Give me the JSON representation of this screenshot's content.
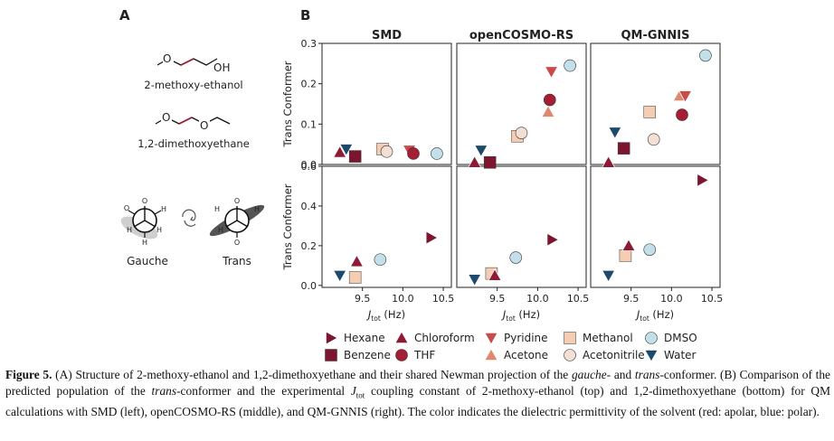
{
  "panel_labels": {
    "a": "A",
    "b": "B"
  },
  "molecules": {
    "mol1_atom": "OH",
    "mol1_name": "2-methoxy-ethanol",
    "mol2_atom": "O",
    "mol2_name": "1,2-dimethoxyethane",
    "newman_o": "O",
    "newman_h": "H",
    "gauche_label": "Gauche",
    "trans_label": "Trans"
  },
  "colors": {
    "Hexane": "#7b1530",
    "Chloroform": "#8e1a35",
    "Benzene": "#7b1530",
    "THF": "#a51e36",
    "Pyridine": "#c94a4a",
    "Acetone": "#e0876f",
    "Methanol": "#f5cdb2",
    "Acetonitrile": "#f3dfd3",
    "DMSO": "#c3dfea",
    "Water": "#1d4a6b"
  },
  "chart_data": {
    "type": "scatter",
    "columns": [
      "SMD",
      "openCOSMO-RS",
      "QM-GNNIS"
    ],
    "xlabel": "J",
    "xlabel_sub": "tot",
    "xlabel_unit": "(Hz)",
    "xlim": [
      9.0,
      10.6
    ],
    "xticks": [
      9.5,
      10.0,
      10.5
    ],
    "rows": [
      {
        "ylabel": "Trans Conformer",
        "ylim": [
          0.0,
          0.3
        ],
        "yticks": [
          0.0,
          0.1,
          0.2,
          0.3
        ]
      },
      {
        "ylabel": "Trans Conformer",
        "ylim": [
          -0.01,
          0.6
        ],
        "yticks": [
          0.0,
          0.2,
          0.4,
          0.6
        ]
      }
    ],
    "panels": [
      {
        "row": 0,
        "col": 0,
        "points": [
          {
            "solvent": "Chloroform",
            "x": 9.22,
            "y": 0.03
          },
          {
            "solvent": "Water",
            "x": 9.3,
            "y": 0.038
          },
          {
            "solvent": "Benzene",
            "x": 9.41,
            "y": 0.02
          },
          {
            "solvent": "Methanol",
            "x": 9.75,
            "y": 0.038
          },
          {
            "solvent": "Acetonitrile",
            "x": 9.8,
            "y": 0.032
          },
          {
            "solvent": "Pyridine",
            "x": 10.08,
            "y": 0.035
          },
          {
            "solvent": "THF",
            "x": 10.13,
            "y": 0.027
          },
          {
            "solvent": "DMSO",
            "x": 10.42,
            "y": 0.027
          }
        ]
      },
      {
        "row": 0,
        "col": 1,
        "points": [
          {
            "solvent": "Chloroform",
            "x": 9.22,
            "y": 0.005
          },
          {
            "solvent": "Water",
            "x": 9.3,
            "y": 0.035
          },
          {
            "solvent": "Benzene",
            "x": 9.41,
            "y": 0.005
          },
          {
            "solvent": "Methanol",
            "x": 9.75,
            "y": 0.07
          },
          {
            "solvent": "Acetonitrile",
            "x": 9.8,
            "y": 0.078
          },
          {
            "solvent": "Acetone",
            "x": 10.13,
            "y": 0.13
          },
          {
            "solvent": "THF",
            "x": 10.15,
            "y": 0.16
          },
          {
            "solvent": "Pyridine",
            "x": 10.17,
            "y": 0.23
          },
          {
            "solvent": "DMSO",
            "x": 10.4,
            "y": 0.245
          }
        ]
      },
      {
        "row": 0,
        "col": 2,
        "points": [
          {
            "solvent": "Chloroform",
            "x": 9.22,
            "y": 0.005
          },
          {
            "solvent": "Water",
            "x": 9.3,
            "y": 0.08
          },
          {
            "solvent": "Benzene",
            "x": 9.41,
            "y": 0.04
          },
          {
            "solvent": "Methanol",
            "x": 9.73,
            "y": 0.13
          },
          {
            "solvent": "Acetonitrile",
            "x": 9.78,
            "y": 0.062
          },
          {
            "solvent": "Acetone",
            "x": 10.1,
            "y": 0.17
          },
          {
            "solvent": "Pyridine",
            "x": 10.17,
            "y": 0.17
          },
          {
            "solvent": "THF",
            "x": 10.13,
            "y": 0.123
          },
          {
            "solvent": "DMSO",
            "x": 10.42,
            "y": 0.27
          }
        ]
      },
      {
        "row": 1,
        "col": 0,
        "points": [
          {
            "solvent": "Water",
            "x": 9.22,
            "y": 0.05
          },
          {
            "solvent": "Methanol",
            "x": 9.41,
            "y": 0.04
          },
          {
            "solvent": "Chloroform",
            "x": 9.43,
            "y": 0.12
          },
          {
            "solvent": "DMSO",
            "x": 9.72,
            "y": 0.13
          },
          {
            "solvent": "Hexane",
            "x": 10.35,
            "y": 0.24
          }
        ]
      },
      {
        "row": 1,
        "col": 1,
        "points": [
          {
            "solvent": "Water",
            "x": 9.22,
            "y": 0.03
          },
          {
            "solvent": "Methanol",
            "x": 9.43,
            "y": 0.06
          },
          {
            "solvent": "Chloroform",
            "x": 9.47,
            "y": 0.05
          },
          {
            "solvent": "DMSO",
            "x": 9.73,
            "y": 0.14
          },
          {
            "solvent": "Hexane",
            "x": 10.18,
            "y": 0.23
          }
        ]
      },
      {
        "row": 1,
        "col": 2,
        "points": [
          {
            "solvent": "Water",
            "x": 9.22,
            "y": 0.05
          },
          {
            "solvent": "Methanol",
            "x": 9.43,
            "y": 0.15
          },
          {
            "solvent": "Chloroform",
            "x": 9.47,
            "y": 0.2
          },
          {
            "solvent": "DMSO",
            "x": 9.73,
            "y": 0.18
          },
          {
            "solvent": "Hexane",
            "x": 10.38,
            "y": 0.53
          }
        ]
      }
    ],
    "legend": [
      {
        "label": "Hexane",
        "marker": "tri-right"
      },
      {
        "label": "Chloroform",
        "marker": "tri-up"
      },
      {
        "label": "Pyridine",
        "marker": "tri-down"
      },
      {
        "label": "Methanol",
        "marker": "square"
      },
      {
        "label": "DMSO",
        "marker": "circle"
      },
      {
        "label": "Benzene",
        "marker": "square"
      },
      {
        "label": "THF",
        "marker": "circle"
      },
      {
        "label": "Acetone",
        "marker": "tri-up"
      },
      {
        "label": "Acetonitrile",
        "marker": "circle"
      },
      {
        "label": "Water",
        "marker": "tri-down"
      }
    ]
  },
  "caption": {
    "label": "Figure 5.",
    "part1": " (A) Structure of 2-methoxy-ethanol and 1,2-dimethoxyethane and their shared Newman projection of the ",
    "gauche": "gauche",
    "part2": "- and ",
    "trans": "trans",
    "part3": "-conformer. (B) Comparison of the predicted population of the ",
    "trans2": "trans",
    "part4": "-conformer and the experimental ",
    "jsym": "J",
    "jsub": "tot",
    "part5": " coupling constant of 2-methoxy-ethanol (top) and 1,2-dimethoxyethane (bottom) for QM calculations with SMD (left), openCOSMO-RS (middle), and QM-GNNIS (right). The color indicates the dielectric permittivity of the solvent (red: apolar, blue: polar)."
  }
}
